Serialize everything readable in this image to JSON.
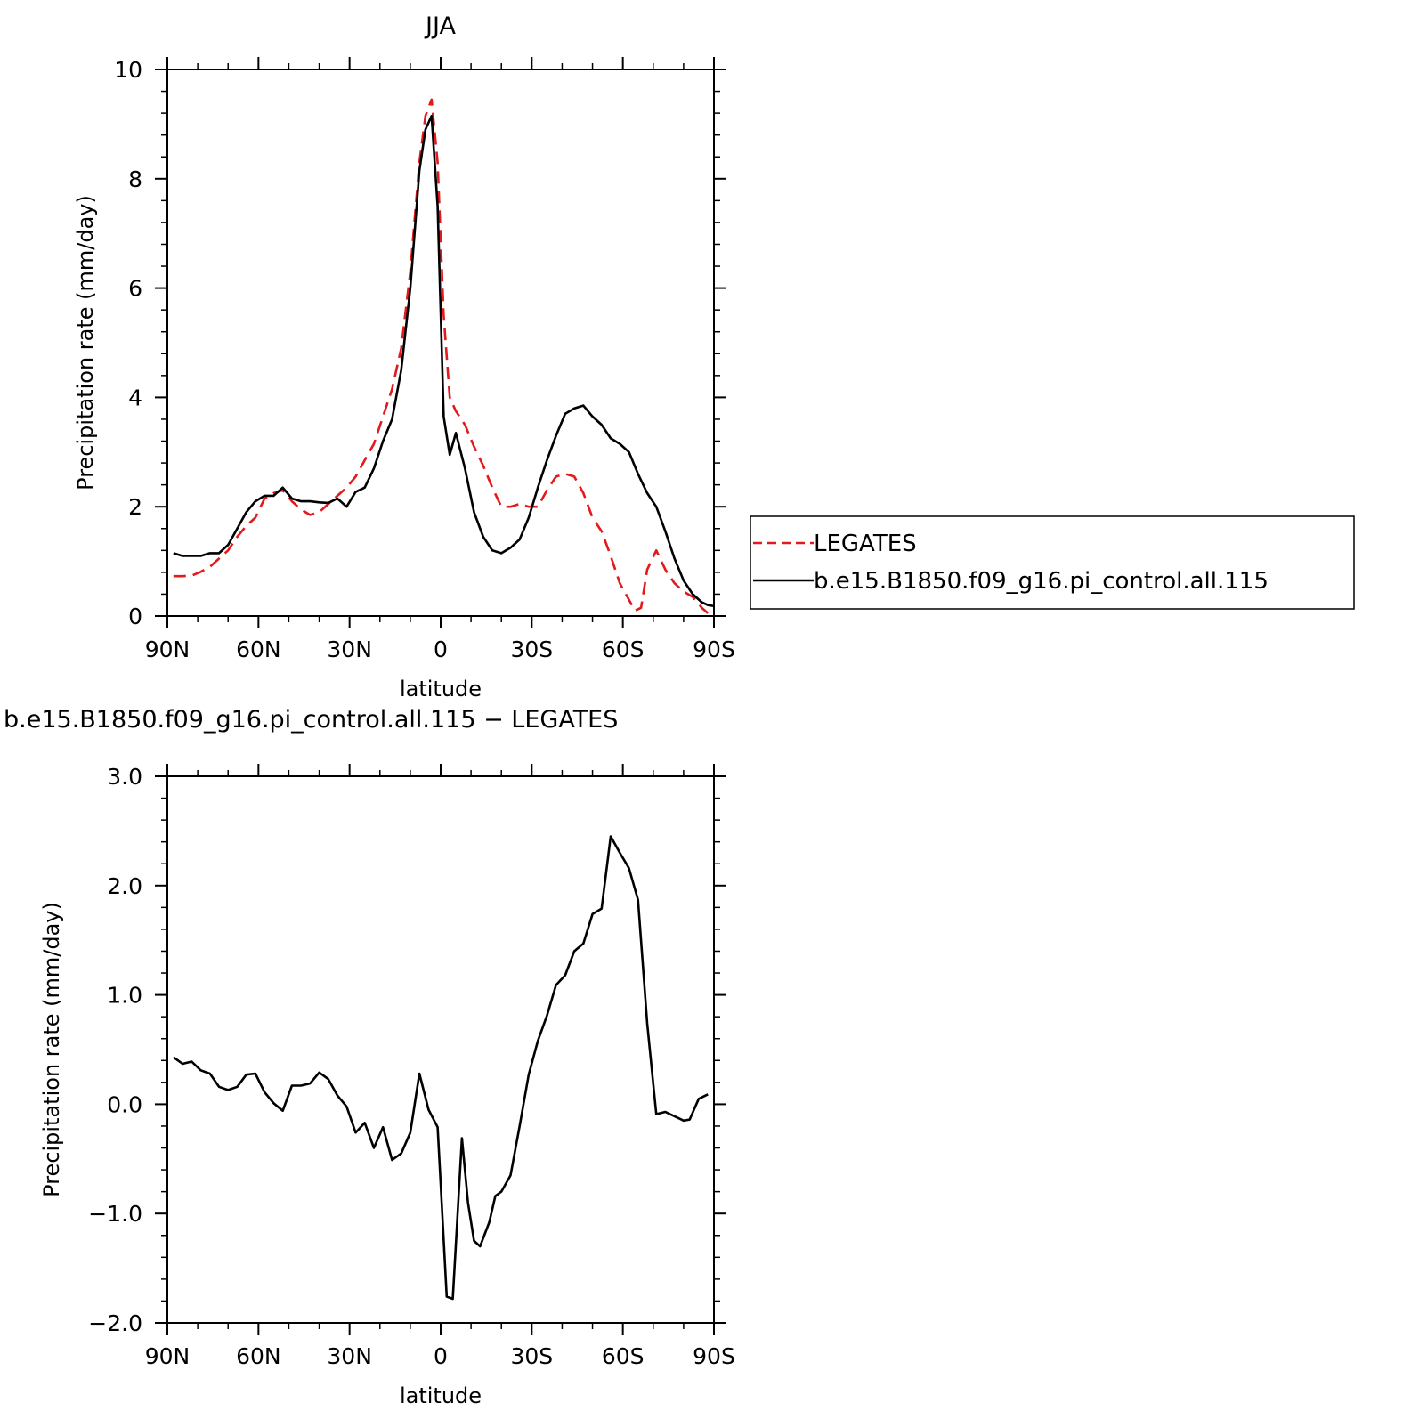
{
  "chart_data": [
    {
      "type": "line",
      "title": "JJA",
      "xlabel": "latitude",
      "ylabel": "Precipitation rate (mm/day)",
      "x_range": [
        90,
        -90
      ],
      "ylim": [
        0,
        10
      ],
      "xticks": [
        {
          "value": 90,
          "label": "90N"
        },
        {
          "value": 60,
          "label": "60N"
        },
        {
          "value": 30,
          "label": "30N"
        },
        {
          "value": 0,
          "label": "0"
        },
        {
          "value": -30,
          "label": "30S"
        },
        {
          "value": -60,
          "label": "60S"
        },
        {
          "value": -90,
          "label": "90S"
        }
      ],
      "yticks": [
        {
          "value": 0,
          "label": "0"
        },
        {
          "value": 2,
          "label": "2"
        },
        {
          "value": 4,
          "label": "4"
        },
        {
          "value": 6,
          "label": "6"
        },
        {
          "value": 8,
          "label": "8"
        },
        {
          "value": 10,
          "label": "10"
        }
      ],
      "legend": {
        "position": "right"
      },
      "series": [
        {
          "name": "LEGATES",
          "color": "#e31a1c",
          "dash": "dashed",
          "points": [
            [
              88,
              0.73
            ],
            [
              85,
              0.73
            ],
            [
              82,
              0.74
            ],
            [
              79,
              0.81
            ],
            [
              76,
              0.9
            ],
            [
              73,
              1.05
            ],
            [
              70,
              1.2
            ],
            [
              67,
              1.45
            ],
            [
              64,
              1.65
            ],
            [
              61,
              1.8
            ],
            [
              58,
              2.15
            ],
            [
              55,
              2.25
            ],
            [
              52,
              2.3
            ],
            [
              49,
              2.1
            ],
            [
              46,
              1.95
            ],
            [
              43,
              1.85
            ],
            [
              40,
              1.9
            ],
            [
              37,
              2.05
            ],
            [
              34,
              2.2
            ],
            [
              31,
              2.35
            ],
            [
              28,
              2.55
            ],
            [
              25,
              2.85
            ],
            [
              22,
              3.15
            ],
            [
              19,
              3.65
            ],
            [
              16,
              4.15
            ],
            [
              13,
              4.9
            ],
            [
              10,
              6.3
            ],
            [
              7,
              8.3
            ],
            [
              5,
              9.15
            ],
            [
              3,
              9.45
            ],
            [
              1,
              8.3
            ],
            [
              -1,
              5.5
            ],
            [
              -3,
              4.0
            ],
            [
              -5,
              3.75
            ],
            [
              -8,
              3.5
            ],
            [
              -11,
              3.1
            ],
            [
              -14,
              2.75
            ],
            [
              -17,
              2.35
            ],
            [
              -20,
              2.0
            ],
            [
              -23,
              2.0
            ],
            [
              -26,
              2.05
            ],
            [
              -29,
              2.0
            ],
            [
              -32,
              2.0
            ],
            [
              -35,
              2.3
            ],
            [
              -38,
              2.55
            ],
            [
              -41,
              2.6
            ],
            [
              -44,
              2.55
            ],
            [
              -47,
              2.25
            ],
            [
              -50,
              1.8
            ],
            [
              -53,
              1.55
            ],
            [
              -56,
              1.1
            ],
            [
              -59,
              0.6
            ],
            [
              -62,
              0.3
            ],
            [
              -64,
              0.1
            ],
            [
              -66,
              0.15
            ],
            [
              -68,
              0.85
            ],
            [
              -71,
              1.2
            ],
            [
              -74,
              0.85
            ],
            [
              -77,
              0.6
            ],
            [
              -80,
              0.45
            ],
            [
              -83,
              0.35
            ],
            [
              -86,
              0.15
            ],
            [
              -88,
              0.05
            ]
          ]
        },
        {
          "name": "b.e15.B1850.f09_g16.pi_control.all.115",
          "color": "#000000",
          "dash": "solid",
          "points": [
            [
              88,
              1.15
            ],
            [
              85,
              1.1
            ],
            [
              82,
              1.1
            ],
            [
              79,
              1.1
            ],
            [
              76,
              1.15
            ],
            [
              73,
              1.15
            ],
            [
              70,
              1.3
            ],
            [
              67,
              1.6
            ],
            [
              64,
              1.9
            ],
            [
              61,
              2.1
            ],
            [
              58,
              2.2
            ],
            [
              55,
              2.2
            ],
            [
              52,
              2.35
            ],
            [
              49,
              2.15
            ],
            [
              46,
              2.1
            ],
            [
              43,
              2.1
            ],
            [
              40,
              2.08
            ],
            [
              37,
              2.07
            ],
            [
              34,
              2.15
            ],
            [
              31,
              2.0
            ],
            [
              28,
              2.27
            ],
            [
              25,
              2.35
            ],
            [
              22,
              2.7
            ],
            [
              19,
              3.2
            ],
            [
              16,
              3.6
            ],
            [
              13,
              4.5
            ],
            [
              10,
              6.0
            ],
            [
              7,
              8.15
            ],
            [
              5,
              8.9
            ],
            [
              3,
              9.15
            ],
            [
              1,
              7.5
            ],
            [
              -1,
              3.65
            ],
            [
              -3,
              2.95
            ],
            [
              -5,
              3.35
            ],
            [
              -8,
              2.7
            ],
            [
              -11,
              1.9
            ],
            [
              -14,
              1.45
            ],
            [
              -17,
              1.2
            ],
            [
              -20,
              1.15
            ],
            [
              -23,
              1.25
            ],
            [
              -26,
              1.4
            ],
            [
              -29,
              1.8
            ],
            [
              -32,
              2.35
            ],
            [
              -35,
              2.85
            ],
            [
              -38,
              3.3
            ],
            [
              -41,
              3.7
            ],
            [
              -44,
              3.8
            ],
            [
              -47,
              3.85
            ],
            [
              -50,
              3.65
            ],
            [
              -53,
              3.5
            ],
            [
              -56,
              3.25
            ],
            [
              -59,
              3.15
            ],
            [
              -62,
              3.0
            ],
            [
              -65,
              2.6
            ],
            [
              -68,
              2.25
            ],
            [
              -71,
              2.0
            ],
            [
              -74,
              1.55
            ],
            [
              -77,
              1.05
            ],
            [
              -80,
              0.65
            ],
            [
              -83,
              0.4
            ],
            [
              -86,
              0.25
            ],
            [
              -88,
              0.2
            ],
            [
              -90,
              0.18
            ]
          ]
        }
      ]
    },
    {
      "type": "line",
      "title": "b.e15.B1850.f09_g16.pi_control.all.115 − LEGATES",
      "xlabel": "latitude",
      "ylabel": "Precipitation rate (mm/day)",
      "x_range": [
        90,
        -90
      ],
      "ylim": [
        -2.0,
        3.0
      ],
      "xticks": [
        {
          "value": 90,
          "label": "90N"
        },
        {
          "value": 60,
          "label": "60N"
        },
        {
          "value": 30,
          "label": "30N"
        },
        {
          "value": 0,
          "label": "0"
        },
        {
          "value": -30,
          "label": "30S"
        },
        {
          "value": -60,
          "label": "60S"
        },
        {
          "value": -90,
          "label": "90S"
        }
      ],
      "yticks": [
        {
          "value": -2.0,
          "label": "−2.0"
        },
        {
          "value": -1.0,
          "label": "−1.0"
        },
        {
          "value": 0.0,
          "label": "0.0"
        },
        {
          "value": 1.0,
          "label": "1.0"
        },
        {
          "value": 2.0,
          "label": "2.0"
        },
        {
          "value": 3.0,
          "label": "3.0"
        }
      ],
      "series": [
        {
          "color": "#000000",
          "dash": "solid",
          "points": [
            [
              88,
              0.43
            ],
            [
              85,
              0.37
            ],
            [
              82,
              0.39
            ],
            [
              79,
              0.31
            ],
            [
              76,
              0.28
            ],
            [
              73,
              0.16
            ],
            [
              70,
              0.13
            ],
            [
              67,
              0.16
            ],
            [
              64,
              0.27
            ],
            [
              61,
              0.28
            ],
            [
              58,
              0.11
            ],
            [
              55,
              0.01
            ],
            [
              52,
              -0.06
            ],
            [
              49,
              0.17
            ],
            [
              46,
              0.17
            ],
            [
              43,
              0.19
            ],
            [
              40,
              0.29
            ],
            [
              37,
              0.23
            ],
            [
              34,
              0.08
            ],
            [
              31,
              -0.02
            ],
            [
              28,
              -0.26
            ],
            [
              25,
              -0.17
            ],
            [
              22,
              -0.4
            ],
            [
              19,
              -0.21
            ],
            [
              16,
              -0.51
            ],
            [
              13,
              -0.45
            ],
            [
              10,
              -0.26
            ],
            [
              7,
              0.28
            ],
            [
              4,
              -0.05
            ],
            [
              1,
              -0.21
            ],
            [
              -2,
              -1.76
            ],
            [
              -4,
              -1.78
            ],
            [
              -7,
              -0.31
            ],
            [
              -9,
              -0.9
            ],
            [
              -11,
              -1.25
            ],
            [
              -13,
              -1.3
            ],
            [
              -16,
              -1.08
            ],
            [
              -18,
              -0.84
            ],
            [
              -20,
              -0.8
            ],
            [
              -23,
              -0.65
            ],
            [
              -26,
              -0.2
            ],
            [
              -29,
              0.27
            ],
            [
              -32,
              0.58
            ],
            [
              -35,
              0.81
            ],
            [
              -38,
              1.09
            ],
            [
              -41,
              1.18
            ],
            [
              -44,
              1.4
            ],
            [
              -47,
              1.47
            ],
            [
              -50,
              1.74
            ],
            [
              -53,
              1.79
            ],
            [
              -56,
              2.45
            ],
            [
              -59,
              2.3
            ],
            [
              -62,
              2.16
            ],
            [
              -65,
              1.87
            ],
            [
              -68,
              0.74
            ],
            [
              -71,
              -0.09
            ],
            [
              -74,
              -0.07
            ],
            [
              -77,
              -0.11
            ],
            [
              -80,
              -0.15
            ],
            [
              -82,
              -0.14
            ],
            [
              -85,
              0.05
            ],
            [
              -88,
              0.09
            ]
          ]
        }
      ]
    }
  ]
}
